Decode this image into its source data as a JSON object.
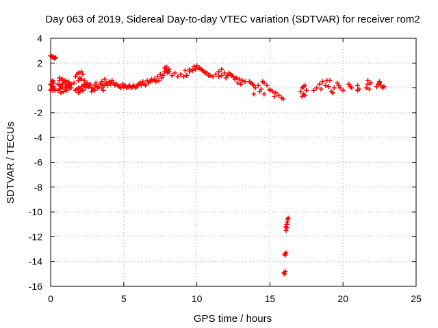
{
  "chart_data": {
    "type": "scatter",
    "title": "Day 063 of 2019, Sidereal Day-to-day VTEC variation (SDTVAR) for receiver rom2",
    "xlabel": "GPS time / hours",
    "ylabel": "SDTVAR / TECUs",
    "xlim": [
      0,
      25
    ],
    "ylim": [
      -16,
      4
    ],
    "xticks": [
      0,
      5,
      10,
      15,
      20,
      25
    ],
    "yticks": [
      -16,
      -14,
      -12,
      -10,
      -8,
      -6,
      -4,
      -2,
      0,
      2,
      4
    ],
    "xtick_labels": [
      "0",
      "5",
      "10",
      "15",
      "20",
      "25"
    ],
    "ytick_labels": [
      "-16",
      "-14",
      "-12",
      "-10",
      "-8",
      "-6",
      "-4",
      "-2",
      "0",
      "2",
      "4"
    ],
    "grid": true,
    "marker": "+",
    "color": "#ff0000",
    "series": [
      {
        "name": "SDTVAR",
        "x": [
          0.0,
          0.05,
          0.1,
          0.15,
          0.2,
          0.25,
          0.3,
          0.35,
          0.0,
          0.05,
          0.1,
          0.15,
          0.2,
          0.0,
          0.05,
          0.1,
          0.15,
          0.2,
          0.25,
          0.3,
          0.5,
          0.6,
          0.7,
          0.8,
          0.9,
          1.0,
          1.1,
          1.2,
          1.3,
          1.4,
          0.5,
          0.6,
          0.7,
          0.8,
          0.9,
          1.0,
          1.1,
          1.2,
          1.3,
          0.6,
          0.8,
          1.0,
          1.2,
          1.4,
          0.7,
          0.9,
          1.1,
          1.6,
          1.7,
          1.8,
          1.9,
          2.0,
          2.1,
          2.2,
          2.3,
          2.4,
          2.5,
          1.8,
          1.9,
          2.0,
          2.1,
          2.2,
          2.3,
          2.4,
          1.7,
          1.9,
          2.1,
          2.3,
          2.5,
          1.9,
          2.1,
          2.6,
          2.7,
          2.8,
          2.9,
          3.0,
          3.1,
          3.2,
          3.3,
          3.4,
          3.5,
          3.6,
          3.7,
          3.8,
          3.9,
          4.0,
          4.1,
          4.2,
          4.3,
          4.4,
          4.5,
          3.5,
          3.6,
          3.7,
          3.8,
          2.8,
          3.0,
          3.2,
          4.6,
          4.7,
          4.8,
          4.9,
          5.0,
          5.1,
          5.2,
          5.3,
          5.4,
          5.5,
          5.6,
          5.7,
          5.8,
          5.9,
          6.0,
          6.1,
          6.2,
          6.3,
          6.4,
          6.5,
          6.6,
          6.7,
          6.8,
          6.9,
          7.0,
          7.1,
          7.2,
          7.3,
          7.4,
          7.5,
          7.6,
          7.7,
          7.8,
          7.9,
          8.0,
          8.1,
          7.8,
          7.9,
          8.0,
          8.1,
          8.3,
          8.5,
          8.7,
          8.9,
          9.1,
          9.3,
          9.5,
          9.7,
          9.9,
          10.1,
          10.3,
          10.5,
          10.7,
          10.9,
          11.1,
          9.2,
          9.5,
          9.8,
          10.0,
          10.2,
          10.4,
          10.6,
          10.8,
          11.3,
          11.5,
          11.7,
          11.9,
          12.1,
          12.3,
          12.5,
          12.7,
          12.9,
          13.1,
          13.3,
          11.5,
          11.7,
          12.0,
          12.2,
          12.4,
          12.6,
          12.8,
          13.0,
          13.6,
          13.8,
          14.0,
          14.2,
          14.4,
          14.6,
          14.8,
          15.0,
          15.2,
          15.4,
          15.6,
          15.8,
          15.9,
          13.7,
          13.9,
          14.3,
          14.6,
          15.0,
          15.3,
          13.9,
          14.5,
          15.95,
          16.0,
          16.05,
          16.0,
          16.05,
          16.1,
          16.1,
          16.15,
          16.2,
          16.25,
          16.1,
          16.15,
          16.2,
          17.1,
          17.2,
          17.3,
          17.4,
          17.5,
          17.2,
          17.4,
          17.3,
          18.0,
          18.2,
          18.4,
          18.6,
          18.8,
          19.0,
          19.2,
          19.4,
          19.6,
          19.8,
          20.0,
          18.5,
          18.9,
          19.3,
          19.7,
          19.1,
          20.4,
          20.6,
          20.5,
          21.0,
          21.1,
          21.0,
          21.6,
          21.7,
          21.8,
          21.9,
          21.7,
          22.3,
          22.4,
          22.5,
          22.6,
          22.7,
          22.8,
          22.5
        ],
        "y": [
          2.6,
          2.55,
          2.5,
          2.5,
          2.45,
          2.4,
          2.4,
          2.45,
          -0.2,
          -0.1,
          0.0,
          -0.2,
          0.1,
          0.3,
          0.2,
          0.5,
          0.6,
          0.4,
          -0.1,
          -0.2,
          0.3,
          0.6,
          0.2,
          0.0,
          0.5,
          0.3,
          0.1,
          0.4,
          0.2,
          0.0,
          -0.2,
          -0.1,
          0.1,
          0.3,
          -0.3,
          0.0,
          -0.2,
          0.1,
          0.0,
          0.8,
          0.7,
          0.6,
          0.5,
          0.3,
          -0.4,
          -0.3,
          0.0,
          0.4,
          0.9,
          1.1,
          1.2,
          0.8,
          1.3,
          1.1,
          0.6,
          0.3,
          0.2,
          -0.1,
          0.0,
          -0.3,
          0.1,
          -0.2,
          0.2,
          0.0,
          -0.2,
          -0.4,
          -0.1,
          0.3,
          0.4,
          0.6,
          0.7,
          0.1,
          0.3,
          0.0,
          -0.1,
          0.2,
          0.4,
          0.1,
          0.0,
          0.3,
          0.5,
          0.2,
          0.7,
          0.4,
          0.2,
          0.5,
          0.3,
          0.6,
          0.4,
          0.2,
          0.3,
          0.0,
          -0.2,
          0.2,
          0.4,
          -0.3,
          -0.2,
          0.0,
          0.2,
          0.1,
          0.0,
          0.3,
          0.1,
          0.2,
          0.0,
          0.1,
          0.2,
          0.0,
          0.1,
          0.2,
          0.0,
          0.1,
          0.3,
          0.4,
          0.2,
          0.5,
          0.3,
          0.2,
          0.6,
          0.4,
          0.5,
          0.7,
          0.6,
          0.7,
          0.5,
          0.9,
          0.6,
          1.1,
          0.8,
          1.0,
          1.3,
          1.5,
          1.4,
          1.3,
          1.6,
          1.7,
          1.2,
          1.5,
          1.0,
          1.2,
          0.9,
          1.1,
          0.9,
          1.0,
          1.3,
          1.4,
          1.5,
          1.6,
          1.5,
          1.3,
          1.2,
          1.0,
          0.9,
          1.4,
          1.5,
          1.7,
          1.8,
          1.6,
          1.4,
          1.2,
          1.0,
          1.1,
          1.3,
          1.5,
          1.2,
          1.0,
          1.1,
          0.9,
          0.8,
          0.7,
          0.6,
          0.5,
          0.9,
          1.0,
          0.8,
          1.2,
          1.0,
          0.7,
          0.4,
          0.3,
          0.5,
          0.3,
          0.0,
          0.2,
          -0.1,
          0.4,
          0.2,
          -0.2,
          -0.3,
          -0.4,
          -0.6,
          -0.8,
          -0.9,
          0.4,
          0.2,
          -0.3,
          -0.5,
          -0.1,
          -0.7,
          -0.5,
          0.5,
          -14.9,
          -15.0,
          -14.8,
          -13.4,
          -13.5,
          -13.3,
          -11.2,
          -11.0,
          -10.8,
          -10.5,
          -11.5,
          -11.3,
          -10.6,
          -0.3,
          0.0,
          -0.5,
          0.2,
          -0.2,
          -0.7,
          -0.6,
          0.1,
          -0.2,
          0.0,
          0.3,
          0.5,
          0.2,
          0.1,
          -0.3,
          0.0,
          0.4,
          0.0,
          -0.2,
          -0.1,
          0.6,
          -0.4,
          0.2,
          0.6,
          0.3,
          0.0,
          0.1,
          0.2,
          -0.1,
          -0.2,
          0.0,
          0.3,
          -0.1,
          0.4,
          0.6,
          0.1,
          0.3,
          0.4,
          0.2,
          0.0,
          0.1,
          0.5
        ]
      }
    ]
  }
}
